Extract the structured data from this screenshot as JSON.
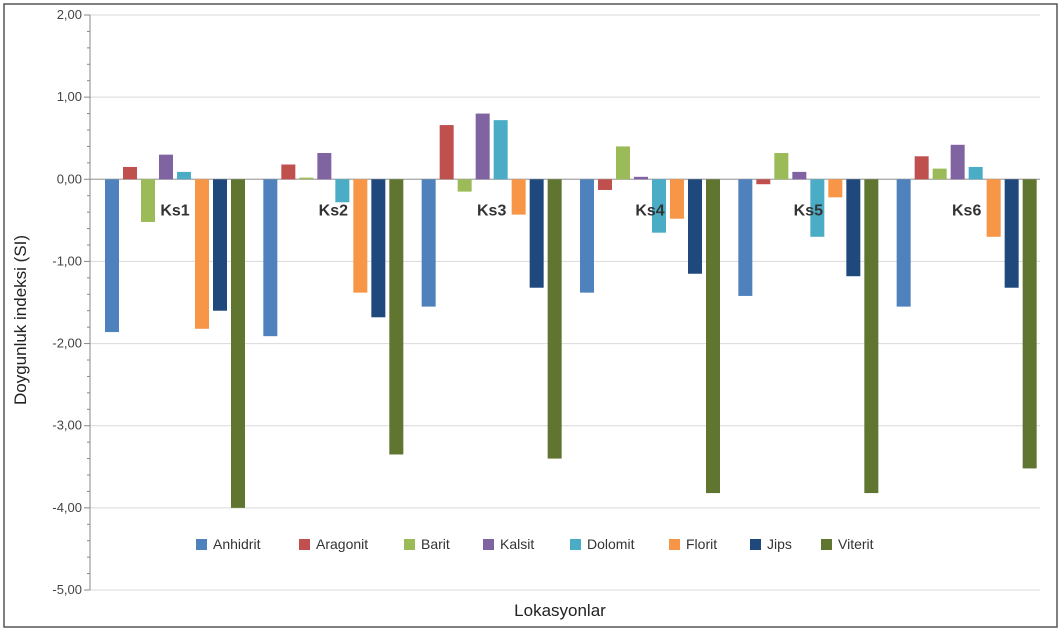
{
  "chart_data": {
    "type": "bar",
    "title": "",
    "xlabel": "Lokasyonlar",
    "ylabel": "Doygunluk indeksi (SI)",
    "ylim": [
      -5,
      2
    ],
    "yticks": [
      "2,00",
      "1,00",
      "0,00",
      "-1,00",
      "-2,00",
      "-3,00",
      "-4,00",
      "-5,00"
    ],
    "grid": true,
    "legend_position": "bottom-inside",
    "categories": [
      "Ks1",
      "Ks2",
      "Ks3",
      "Ks4",
      "Ks5",
      "Ks6"
    ],
    "series": [
      {
        "name": "Anhidrit",
        "color": "#4F81BD",
        "values": [
          -1.86,
          -1.91,
          -1.55,
          -1.38,
          -1.42,
          -1.55
        ]
      },
      {
        "name": "Aragonit",
        "color": "#C0504D",
        "values": [
          0.15,
          0.18,
          0.66,
          -0.13,
          -0.06,
          0.28
        ]
      },
      {
        "name": "Barit",
        "color": "#9BBB59",
        "values": [
          -0.52,
          0.02,
          -0.15,
          0.4,
          0.32,
          0.13
        ]
      },
      {
        "name": "Kalsit",
        "color": "#8064A2",
        "values": [
          0.3,
          0.32,
          0.8,
          0.03,
          0.09,
          0.42
        ]
      },
      {
        "name": "Dolomit",
        "color": "#4BACC6",
        "values": [
          0.09,
          -0.28,
          0.72,
          -0.65,
          -0.7,
          0.15
        ]
      },
      {
        "name": "Florit",
        "color": "#F79646",
        "values": [
          -1.82,
          -1.38,
          -0.43,
          -0.48,
          -0.22,
          -0.7
        ]
      },
      {
        "name": "Jips",
        "color": "#1F497D",
        "values": [
          -1.6,
          -1.68,
          -1.32,
          -1.15,
          -1.18,
          -1.32
        ]
      },
      {
        "name": "Viterit",
        "color": "#5F7530",
        "values": [
          -4.0,
          -3.35,
          -3.4,
          -3.82,
          -3.82,
          -3.52
        ]
      }
    ]
  }
}
